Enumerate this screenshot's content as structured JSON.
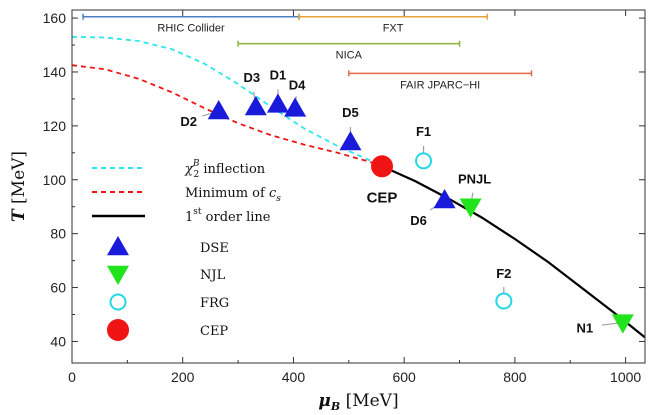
{
  "chart_data": {
    "type": "scatter",
    "xlabel": "μ",
    "xlabel_sub": "B",
    "xlabel_unit": "[MeV]",
    "ylabel": "T",
    "ylabel_unit": "[MeV]",
    "xlim": [
      0,
      1035
    ],
    "ylim": [
      32,
      163
    ],
    "x_ticks": [
      0,
      200,
      400,
      600,
      800,
      1000
    ],
    "y_ticks": [
      40,
      60,
      80,
      100,
      120,
      140,
      160
    ],
    "grid": false,
    "colors": {
      "dse": "#1a1adb",
      "njl": "#22e41c",
      "frg": "#23d7e3",
      "cep": "#f01414",
      "chi_line": "#2ee6f0",
      "cs_line": "#f01414",
      "first_order": "#000000",
      "callout": "#9aa0a8"
    },
    "ranges": [
      {
        "label": "RHIC Collider",
        "x": [
          20,
          410
        ],
        "y": 160.5,
        "color": "#4a7fc1"
      },
      {
        "label": "FXT",
        "x": [
          410,
          750
        ],
        "y": 160.5,
        "color": "#e8a23a"
      },
      {
        "label": "NICA",
        "x": [
          300,
          700
        ],
        "y": 150.5,
        "color": "#8bb33a"
      },
      {
        "label": "FAIR JPARC−HI",
        "x": [
          500,
          830
        ],
        "y": 139.5,
        "color": "#e26a4a"
      }
    ],
    "lines": [
      {
        "name": "χ₂ᴮ inflection",
        "style": "dashed",
        "color_key": "chi_line",
        "x": [
          0,
          60,
          120,
          180,
          240,
          300,
          360,
          420,
          480,
          540,
          560
        ],
        "y": [
          153,
          152.8,
          151.5,
          148.5,
          143,
          135.5,
          127,
          119,
          112.5,
          107,
          105
        ]
      },
      {
        "name": "Minimum of c_s",
        "style": "dashed",
        "color_key": "cs_line",
        "x": [
          0,
          60,
          120,
          180,
          240,
          300,
          360,
          420,
          480,
          540,
          560
        ],
        "y": [
          142.5,
          141,
          137.5,
          132.5,
          126.5,
          121,
          116.5,
          113,
          110,
          106.5,
          105
        ]
      },
      {
        "name": "1st order line",
        "style": "solid",
        "color_key": "first_order",
        "x": [
          560,
          620,
          680,
          740,
          800,
          860,
          920,
          980,
          1035
        ],
        "y": [
          105,
          99.5,
          93,
          86,
          78,
          69.5,
          60,
          50.5,
          41.5
        ]
      }
    ],
    "points": [
      {
        "series": "DSE",
        "label": "D1",
        "x": 372,
        "y": 128
      },
      {
        "series": "DSE",
        "label": "D2",
        "x": 265,
        "y": 125.5
      },
      {
        "series": "DSE",
        "label": "D3",
        "x": 332,
        "y": 127
      },
      {
        "series": "DSE",
        "label": "D4",
        "x": 403,
        "y": 126.5
      },
      {
        "series": "DSE",
        "label": "D5",
        "x": 503,
        "y": 114
      },
      {
        "series": "DSE",
        "label": "D6",
        "x": 673,
        "y": 92.5
      },
      {
        "series": "NJL",
        "label": "PNJL",
        "x": 720,
        "y": 90
      },
      {
        "series": "NJL",
        "label": "N1",
        "x": 995,
        "y": 47
      },
      {
        "series": "FRG",
        "label": "F1",
        "x": 635,
        "y": 107
      },
      {
        "series": "FRG",
        "label": "F2",
        "x": 780,
        "y": 55
      },
      {
        "series": "CEP",
        "label": "CEP",
        "x": 560,
        "y": 105
      }
    ],
    "legend": {
      "placement": "left",
      "line_entries": [
        {
          "text_main": "χ",
          "text_sub": "2",
          "text_sup": "B",
          "text_rest": " inflection",
          "line_key": "chi_line",
          "style": "dashed"
        },
        {
          "text_main": "Minimum of ",
          "text_italic": "c",
          "text_sub": "s",
          "line_key": "cs_line",
          "style": "dashed"
        },
        {
          "text_sup": "st",
          "text_main": "1",
          "text_rest": " order line",
          "line_key": "first_order",
          "style": "solid"
        }
      ],
      "marker_entries": [
        {
          "text": "DSE",
          "marker": "triangle-up",
          "color_key": "dse"
        },
        {
          "text": "NJL",
          "marker": "triangle-down",
          "color_key": "njl"
        },
        {
          "text": "FRG",
          "marker": "circle-open",
          "color_key": "frg"
        },
        {
          "text": "CEP",
          "marker": "circle-filled",
          "color_key": "cep"
        }
      ]
    }
  }
}
